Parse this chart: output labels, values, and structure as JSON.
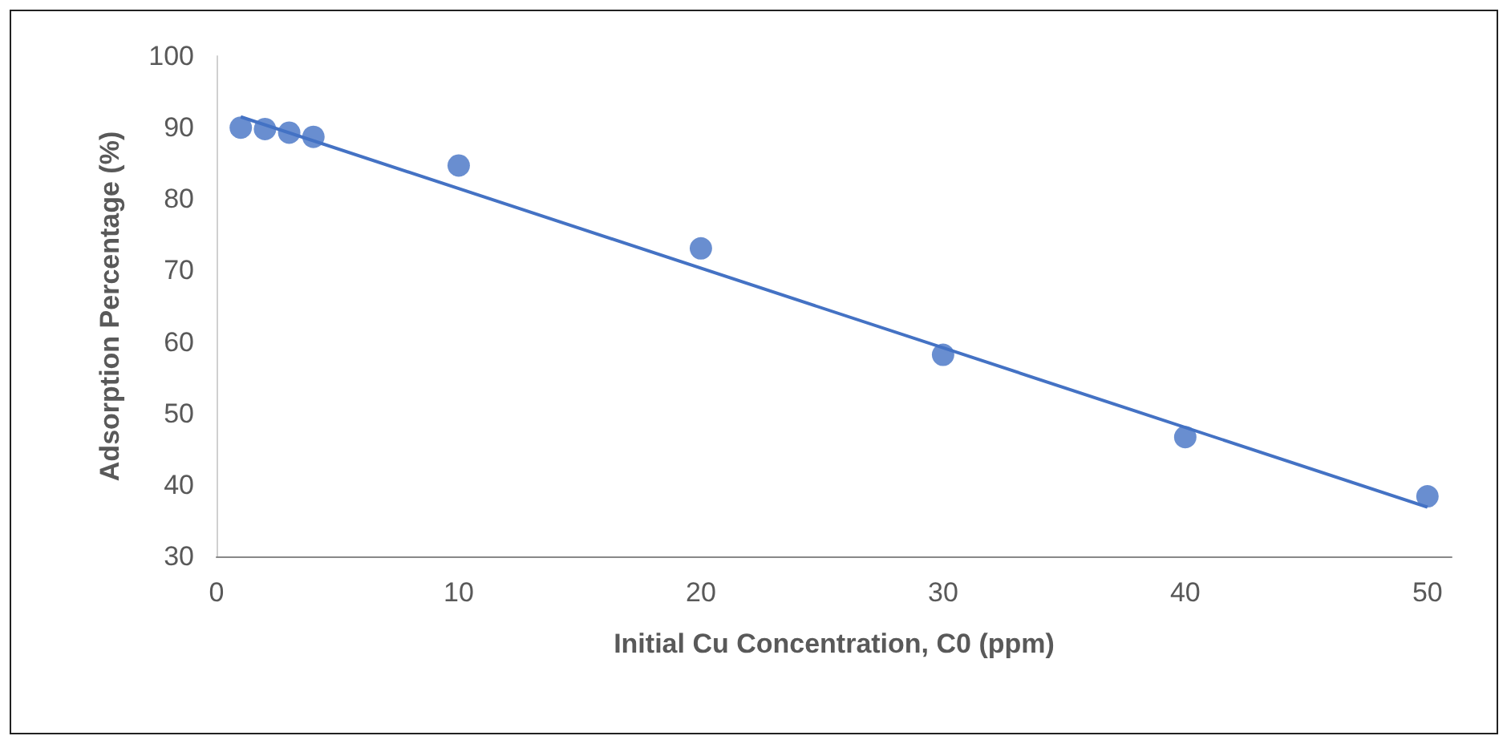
{
  "chart_data": {
    "type": "scatter",
    "xlabel": "Initial Cu Concentration, C0 (ppm)",
    "ylabel": "Adsorption Percentage (%)",
    "x": [
      1,
      2,
      3,
      4,
      10,
      20,
      30,
      40,
      50
    ],
    "series": [
      {
        "color": "#4472c4",
        "values": [
          90,
          89.8,
          89.3,
          88.7,
          84.7,
          73.1,
          58.2,
          46.7,
          38.4
        ]
      },
      {
        "type": "line",
        "color": "#4472c4",
        "x": [
          1,
          50
        ],
        "values": [
          91.5,
          36.9
        ],
        "marker": "none"
      }
    ],
    "xlim": [
      0,
      51
    ],
    "xticks": [
      0,
      10,
      20,
      30,
      40,
      50
    ],
    "ylim": [
      30,
      100
    ],
    "yticks": [
      30,
      40,
      50,
      60,
      70,
      80,
      90,
      100
    ],
    "grid": false,
    "marker": "circle"
  }
}
